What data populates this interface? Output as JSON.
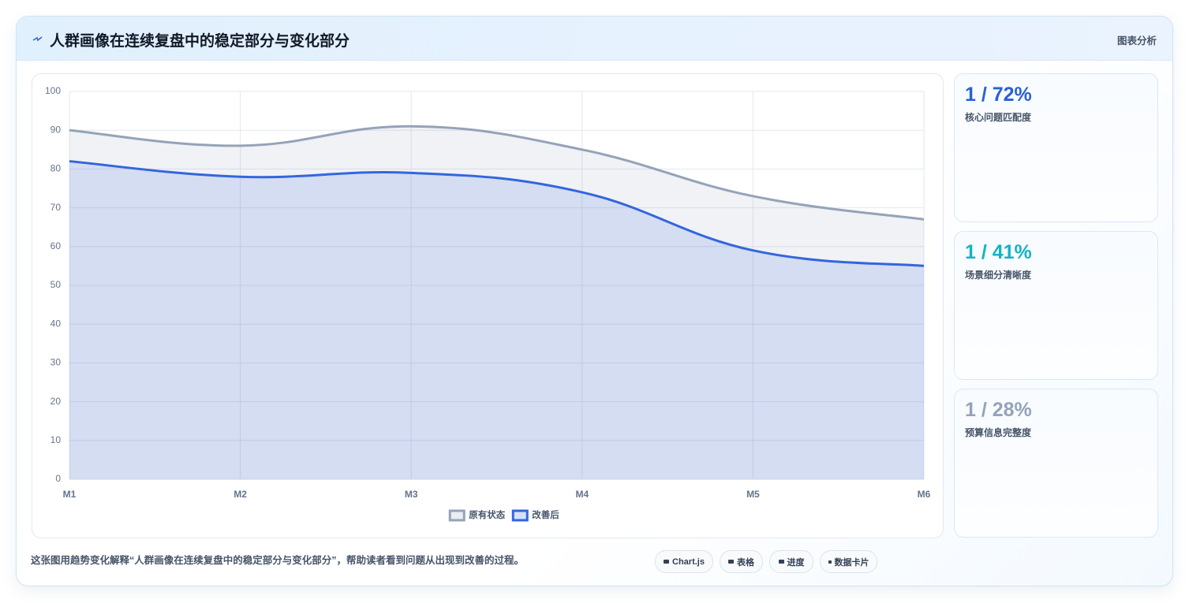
{
  "header": {
    "title": "人群画像在连续复盘中的稳定部分与变化部分",
    "tag": "图表分析"
  },
  "chart_data": {
    "type": "line",
    "categories": [
      "M1",
      "M2",
      "M3",
      "M4",
      "M5",
      "M6"
    ],
    "series": [
      {
        "name": "原有状态",
        "color": "#94a3b8",
        "values": [
          90,
          86,
          91,
          85,
          73,
          67
        ]
      },
      {
        "name": "改善后",
        "color": "#3366dd",
        "values": [
          82,
          78,
          79,
          74,
          59,
          55
        ]
      }
    ],
    "ylim": [
      0,
      100
    ],
    "yticks": [
      0,
      10,
      20,
      30,
      40,
      50,
      60,
      70,
      80,
      90,
      100
    ],
    "grid": true,
    "fill": true,
    "legend": "bottom"
  },
  "cards": [
    {
      "value": "1 / 72%",
      "label": "核心问题匹配度",
      "color": "#2b5fd9"
    },
    {
      "value": "1 / 41%",
      "label": "场景细分清晰度",
      "color": "#13b3c8"
    },
    {
      "value": "1 / 28%",
      "label": "预算信息完整度",
      "color": "#94a3b8"
    }
  ],
  "footer": {
    "text": "这张图用趋势变化解释“人群画像在连续复盘中的稳定部分与变化部分”，帮助读者看到问题从出现到改善的过程。",
    "buttons": [
      "Chart.js",
      "表格",
      "进度",
      "数据卡片"
    ]
  }
}
